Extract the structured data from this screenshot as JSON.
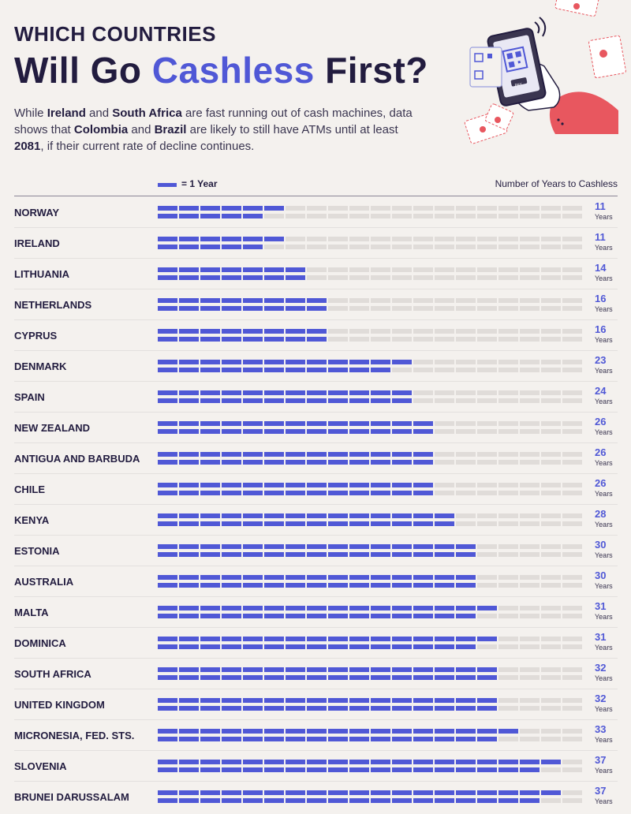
{
  "header": {
    "kicker": "WHICH COUNTRIES",
    "title_pre": "Will Go ",
    "title_highlight": "Cashless",
    "title_post": " First?",
    "intro": {
      "t1": "While ",
      "b1": "Ireland",
      "t2": " and ",
      "b2": "South Africa",
      "t3": " are fast running out of cash machines, data shows that ",
      "b3": "Colombia",
      "t4": " and ",
      "b4": "Brazil",
      "t5": " are likely to still have ATMs until at least ",
      "b5": "2081",
      "t6": ", if their current rate of decline continues."
    }
  },
  "legend": {
    "unit_label": "= 1 Year",
    "right_label": "Number of Years to Cashless"
  },
  "colors": {
    "bar": "#5058d6",
    "track": "#e0dcd9",
    "accent": "#e8575f"
  },
  "illustration": {
    "icon": "phone-qr-payment-icon",
    "phone_label": "PAY"
  },
  "chart_data": {
    "type": "bar",
    "orientation": "horizontal",
    "title": "Will Go Cashless First?",
    "unit_label": "Years",
    "legend": "= 1 Year",
    "value_label": "Number of Years to Cashless",
    "max_scale": 40,
    "categories": [
      "NORWAY",
      "IRELAND",
      "LITHUANIA",
      "NETHERLANDS",
      "CYPRUS",
      "DENMARK",
      "SPAIN",
      "NEW ZEALAND",
      "ANTIGUA AND BARBUDA",
      "CHILE",
      "KENYA",
      "ESTONIA",
      "AUSTRALIA",
      "MALTA",
      "DOMINICA",
      "SOUTH AFRICA",
      "UNITED KINGDOM",
      "MICRONESIA, FED. STS.",
      "SLOVENIA",
      "BRUNEI DARUSSALAM"
    ],
    "values": [
      11,
      11,
      14,
      16,
      16,
      23,
      24,
      26,
      26,
      26,
      28,
      30,
      30,
      31,
      31,
      32,
      32,
      33,
      37,
      37
    ]
  }
}
